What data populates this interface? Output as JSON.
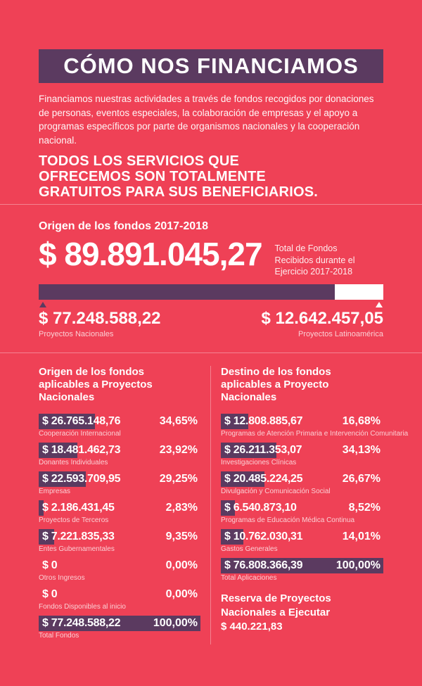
{
  "colors": {
    "background": "#EF4156",
    "accent_purple": "#5B3A60",
    "white": "#FFFFFF"
  },
  "header": {
    "title": "CÓMO NOS FINANCIAMOS",
    "intro": "Financiamos nuestras actividades a través de fondos recogidos por donaciones de personas, eventos especiales, la colaboración de empresas y el apoyo a programas específicos por parte de organismos nacionales y la cooperación nacional.",
    "highlight_lines": [
      "TODOS LOS SERVICIOS QUE",
      "OFRECEMOS SON TOTALMENTE",
      "GRATUITOS PARA SUS BENEFICIARIOS."
    ]
  },
  "overview": {
    "section_title": "Origen de los fondos 2017-2018",
    "total_amount": "$ 89.891.045,27",
    "total_caption": "Total de Fondos Recibidos durante el Ejercicio 2017-2018",
    "national": {
      "amount": "$ 77.248.588,22",
      "label": "Proyectos Nacionales",
      "pct_value": 85.9
    },
    "latam": {
      "amount": "$ 12.642.457,05",
      "label": "Proyectos Latinoamérica",
      "pct_value": 14.1
    }
  },
  "origin_table": {
    "title": "Origen de los fondos aplicables a Proyectos Nacionales",
    "rows": [
      {
        "amount": "$ 26.765.148,76",
        "label": "Cooperación Internacional",
        "pct": "34,65%",
        "pct_value": 34.65
      },
      {
        "amount": "$ 18.481.462,73",
        "label": "Donantes Individuales",
        "pct": "23,92%",
        "pct_value": 23.92
      },
      {
        "amount": "$ 22.593.709,95",
        "label": "Empresas",
        "pct": "29,25%",
        "pct_value": 29.25
      },
      {
        "amount": "$ 2.186.431,45",
        "label": "Proyectos de Terceros",
        "pct": "2,83%",
        "pct_value": 2.83
      },
      {
        "amount": "$ 7.221.835,33",
        "label": "Entes Gubernamentales",
        "pct": "9,35%",
        "pct_value": 9.35
      },
      {
        "amount": "$ 0",
        "label": "Otros Ingresos",
        "pct": "0,00%",
        "pct_value": 0
      },
      {
        "amount": "$ 0",
        "label": "Fondos Disponibles al inicio",
        "pct": "0,00%",
        "pct_value": 0
      },
      {
        "amount": "$ 77.248.588,22",
        "label": "Total Fondos",
        "pct": "100,00%",
        "pct_value": 100
      }
    ]
  },
  "destination_table": {
    "title": "Destino de los fondos aplicables a Proyecto Nacionales",
    "rows": [
      {
        "amount": "$ 12.808.885,67",
        "label": "Programas de Atención Primaria e Intervención Comunitaria",
        "pct": "16,68%",
        "pct_value": 16.68
      },
      {
        "amount": "$ 26.211.353,07",
        "label": "Investigaciones Clínicas",
        "pct": "34,13%",
        "pct_value": 34.13
      },
      {
        "amount": "$ 20.485.224,25",
        "label": "Divulgación y Comunicación Social",
        "pct": "26,67%",
        "pct_value": 26.67
      },
      {
        "amount": "$ 6.540.873,10",
        "label": "Programas de Educación Médica Continua",
        "pct": "8,52%",
        "pct_value": 8.52
      },
      {
        "amount": "$ 10.762.030,31",
        "label": "Gastos Generales",
        "pct": "14,01%",
        "pct_value": 14.01
      },
      {
        "amount": "$ 76.808.366,39",
        "label": "Total Aplicaciones",
        "pct": "100,00%",
        "pct_value": 100
      }
    ]
  },
  "reserve": {
    "label": "Reserva de Proyectos Nacionales a Ejecutar",
    "amount": "$ 440.221,83"
  },
  "chart_data": [
    {
      "type": "bar",
      "title": "Origen de los fondos 2017-2018",
      "subtitle": "Total de Fondos Recibidos durante el Ejercicio 2017-2018",
      "total": 89891045.27,
      "series": [
        {
          "name": "Proyectos Nacionales",
          "value": 77248588.22,
          "pct": 85.9
        },
        {
          "name": "Proyectos Latinoamérica",
          "value": 12642457.05,
          "pct": 14.1
        }
      ],
      "layout": "horizontal-stacked"
    },
    {
      "type": "bar",
      "title": "Origen de los fondos aplicables a Proyectos Nacionales",
      "categories": [
        "Cooperación Internacional",
        "Donantes Individuales",
        "Empresas",
        "Proyectos de Terceros",
        "Entes Gubernamentales",
        "Otros Ingresos",
        "Fondos Disponibles al inicio",
        "Total Fondos"
      ],
      "values": [
        26765148.76,
        18481462.73,
        22593709.95,
        2186431.45,
        7221835.33,
        0,
        0,
        77248588.22
      ],
      "percentages": [
        34.65,
        23.92,
        29.25,
        2.83,
        9.35,
        0.0,
        0.0,
        100.0
      ],
      "layout": "horizontal"
    },
    {
      "type": "bar",
      "title": "Destino de los fondos aplicables a Proyecto Nacionales",
      "categories": [
        "Programas de Atención Primaria e Intervención Comunitaria",
        "Investigaciones Clínicas",
        "Divulgación y Comunicación Social",
        "Programas de Educación Médica Continua",
        "Gastos Generales",
        "Total Aplicaciones"
      ],
      "values": [
        12808885.67,
        26211353.07,
        20485224.25,
        6540873.1,
        10762030.31,
        76808366.39
      ],
      "percentages": [
        16.68,
        34.13,
        26.67,
        8.52,
        14.01,
        100.0
      ],
      "layout": "horizontal"
    }
  ]
}
